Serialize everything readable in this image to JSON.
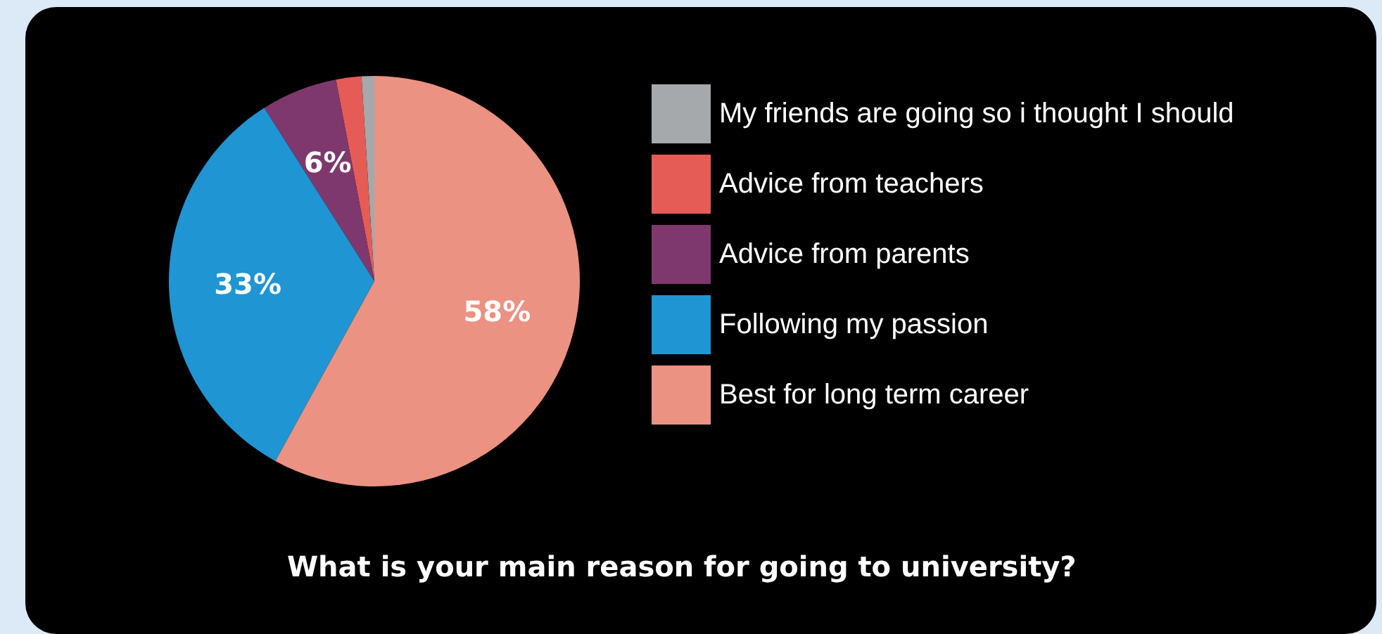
{
  "chart_data": {
    "type": "pie",
    "title": "What is your main reason for going to university?",
    "categories": [
      "My friends are going so i thought I should",
      "Advice from teachers",
      "Advice from parents",
      "Following my passion",
      "Best for long term career"
    ],
    "values": [
      1,
      2,
      6,
      33,
      58
    ],
    "colors": [
      "#a5a9ab",
      "#e55c56",
      "#7f386d",
      "#1f95d3",
      "#eb9282"
    ],
    "value_labels": [
      null,
      null,
      "6%",
      "33%",
      "58%"
    ],
    "legend": "right"
  }
}
